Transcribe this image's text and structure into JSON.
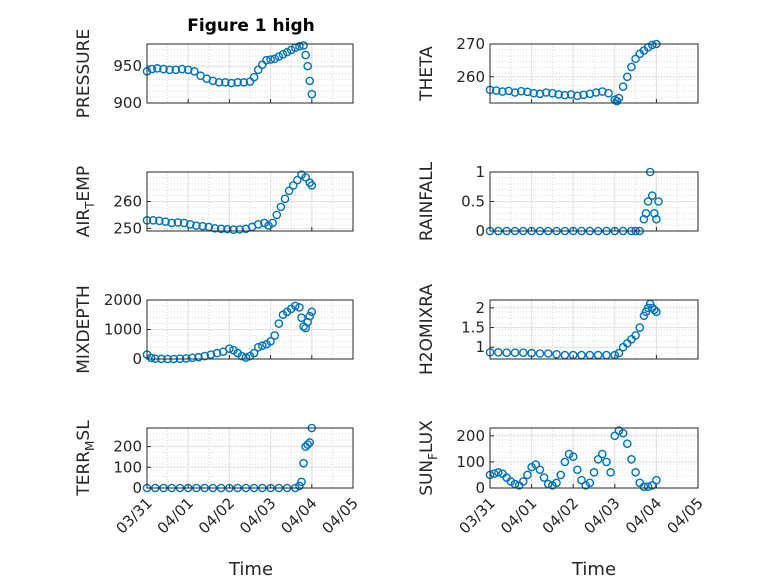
{
  "title": "Figure 1 high",
  "x_axis_label": "Time",
  "marker_color": "#0072bd",
  "chart_data": [
    {
      "type": "scatter",
      "ylabel": "PRESSURE",
      "ylim": [
        900,
        980
      ],
      "yticks": [
        900,
        950
      ],
      "xlim": [
        0,
        5
      ],
      "xticks": [],
      "grid": true,
      "x": [
        0,
        0.12,
        0.25,
        0.4,
        0.55,
        0.7,
        0.85,
        1.0,
        1.15,
        1.3,
        1.45,
        1.6,
        1.75,
        1.9,
        2.05,
        2.2,
        2.35,
        2.5,
        2.6,
        2.7,
        2.8,
        2.9,
        3.0,
        3.1,
        3.2,
        3.3,
        3.4,
        3.5,
        3.6,
        3.7,
        3.8,
        3.85,
        3.9,
        3.95,
        4.0
      ],
      "y": [
        943,
        946,
        947,
        946,
        945,
        945,
        946,
        945,
        943,
        937,
        933,
        930,
        928,
        928,
        927,
        928,
        928,
        929,
        935,
        945,
        952,
        958,
        959,
        960,
        963,
        966,
        969,
        972,
        975,
        977,
        978,
        965,
        950,
        930,
        912
      ]
    },
    {
      "type": "scatter",
      "ylabel": "THETA",
      "ylim": [
        252,
        270
      ],
      "yticks": [
        260,
        270
      ],
      "xlim": [
        0,
        5
      ],
      "xticks": [],
      "grid": true,
      "x": [
        0,
        0.15,
        0.3,
        0.45,
        0.6,
        0.75,
        0.9,
        1.05,
        1.2,
        1.35,
        1.5,
        1.65,
        1.8,
        1.95,
        2.1,
        2.25,
        2.4,
        2.55,
        2.7,
        2.85,
        3.0,
        3.05,
        3.1,
        3.2,
        3.3,
        3.4,
        3.5,
        3.6,
        3.7,
        3.8,
        3.9,
        4.0
      ],
      "y": [
        256,
        255.8,
        255.5,
        255.7,
        255.2,
        255.6,
        255.4,
        255,
        254.8,
        255.2,
        255,
        254.6,
        254.4,
        254.6,
        254.2,
        254.5,
        254.8,
        255.2,
        255.5,
        255,
        253,
        252.6,
        253.5,
        257,
        260,
        263,
        265.5,
        267,
        268,
        269,
        269.7,
        270
      ]
    },
    {
      "type": "scatter",
      "ylabel": "AIR_TEMP",
      "ylim": [
        249,
        271
      ],
      "yticks": [
        250,
        260
      ],
      "xlim": [
        0,
        5
      ],
      "xticks": [],
      "grid": true,
      "x": [
        0,
        0.15,
        0.3,
        0.45,
        0.6,
        0.75,
        0.9,
        1.05,
        1.2,
        1.35,
        1.5,
        1.65,
        1.8,
        1.95,
        2.1,
        2.25,
        2.4,
        2.55,
        2.7,
        2.85,
        2.95,
        3.05,
        3.15,
        3.25,
        3.35,
        3.45,
        3.55,
        3.65,
        3.75,
        3.85,
        3.95,
        4.0
      ],
      "y": [
        253,
        253,
        252.8,
        252.5,
        252,
        252.2,
        252,
        251.5,
        251,
        250.8,
        250.5,
        250,
        249.8,
        249.7,
        249.5,
        249.6,
        249.8,
        250.5,
        251.5,
        252,
        251,
        252,
        255,
        258,
        261,
        264,
        266,
        268,
        270,
        269,
        267,
        266
      ]
    },
    {
      "type": "scatter",
      "ylabel": "RAINFALL",
      "ylim": [
        0,
        1
      ],
      "yticks": [
        0,
        0.5,
        1
      ],
      "xlim": [
        0,
        5
      ],
      "xticks": [],
      "grid": true,
      "x": [
        0,
        0.2,
        0.4,
        0.6,
        0.8,
        1.0,
        1.2,
        1.4,
        1.6,
        1.8,
        2.0,
        2.2,
        2.4,
        2.6,
        2.8,
        3.0,
        3.2,
        3.4,
        3.5,
        3.6,
        3.7,
        3.75,
        3.8,
        3.85,
        3.9,
        3.95,
        4.0,
        4.05
      ],
      "y": [
        0,
        0,
        0,
        0,
        0,
        0,
        0,
        0,
        0,
        0,
        0,
        0,
        0,
        0,
        0,
        0,
        0,
        0,
        0,
        0,
        0.2,
        0.3,
        0.5,
        1.0,
        0.6,
        0.3,
        0.2,
        0.5
      ]
    },
    {
      "type": "scatter",
      "ylabel": "MIXDEPTH",
      "ylim": [
        0,
        2000
      ],
      "yticks": [
        0,
        1000,
        2000
      ],
      "xlim": [
        0,
        5
      ],
      "xticks": [],
      "grid": true,
      "x": [
        0,
        0.1,
        0.2,
        0.35,
        0.5,
        0.65,
        0.8,
        0.95,
        1.1,
        1.25,
        1.4,
        1.55,
        1.7,
        1.85,
        2.0,
        2.1,
        2.2,
        2.3,
        2.4,
        2.5,
        2.6,
        2.7,
        2.8,
        2.9,
        3.0,
        3.1,
        3.2,
        3.3,
        3.4,
        3.5,
        3.6,
        3.7,
        3.75,
        3.8,
        3.85,
        3.9,
        3.95,
        4.0
      ],
      "y": [
        150,
        40,
        10,
        5,
        0,
        0,
        10,
        20,
        40,
        60,
        100,
        150,
        200,
        250,
        350,
        300,
        200,
        100,
        50,
        100,
        200,
        400,
        450,
        500,
        600,
        800,
        1200,
        1500,
        1600,
        1700,
        1800,
        1750,
        1400,
        1100,
        1050,
        1250,
        1450,
        1600
      ]
    },
    {
      "type": "scatter",
      "ylabel": "H2OMIXRA",
      "ylim": [
        0.7,
        2.2
      ],
      "yticks": [
        1,
        1.5,
        2
      ],
      "xlim": [
        0,
        5
      ],
      "xticks": [],
      "grid": true,
      "x": [
        0,
        0.2,
        0.4,
        0.6,
        0.8,
        1.0,
        1.2,
        1.4,
        1.6,
        1.8,
        2.0,
        2.2,
        2.4,
        2.6,
        2.8,
        3.0,
        3.1,
        3.2,
        3.3,
        3.4,
        3.5,
        3.6,
        3.7,
        3.75,
        3.8,
        3.85,
        3.9,
        3.95,
        4.0
      ],
      "y": [
        0.87,
        0.87,
        0.86,
        0.86,
        0.86,
        0.85,
        0.84,
        0.84,
        0.82,
        0.8,
        0.8,
        0.8,
        0.8,
        0.8,
        0.8,
        0.8,
        0.85,
        1.0,
        1.1,
        1.2,
        1.3,
        1.5,
        1.8,
        1.9,
        2.0,
        2.1,
        2.0,
        1.95,
        1.9
      ]
    },
    {
      "type": "scatter",
      "ylabel": "TERR_MSL",
      "ylim": [
        0,
        290
      ],
      "yticks": [
        0,
        100,
        200
      ],
      "xlim": [
        0,
        5
      ],
      "xticks": [
        "03/31",
        "04/01",
        "04/02",
        "04/03",
        "04/04",
        "04/05"
      ],
      "grid": true,
      "x": [
        0,
        0.2,
        0.4,
        0.6,
        0.8,
        1.0,
        1.2,
        1.4,
        1.6,
        1.8,
        2.0,
        2.2,
        2.4,
        2.6,
        2.8,
        3.0,
        3.2,
        3.4,
        3.6,
        3.7,
        3.75,
        3.8,
        3.85,
        3.9,
        3.95,
        4.0
      ],
      "y": [
        0,
        0,
        0,
        0,
        0,
        0,
        0,
        0,
        0,
        0,
        0,
        0,
        0,
        0,
        0,
        0,
        0,
        0,
        0,
        10,
        30,
        120,
        200,
        210,
        220,
        290
      ]
    },
    {
      "type": "scatter",
      "ylabel": "SUN_FLUX",
      "ylim": [
        0,
        230
      ],
      "yticks": [
        0,
        100,
        200
      ],
      "xlim": [
        0,
        5
      ],
      "xticks": [
        "03/31",
        "04/01",
        "04/02",
        "04/03",
        "04/04",
        "04/05"
      ],
      "grid": true,
      "x": [
        0,
        0.1,
        0.2,
        0.3,
        0.4,
        0.5,
        0.6,
        0.7,
        0.8,
        0.9,
        1.0,
        1.1,
        1.2,
        1.3,
        1.4,
        1.5,
        1.6,
        1.7,
        1.8,
        1.9,
        2.0,
        2.1,
        2.2,
        2.3,
        2.4,
        2.5,
        2.6,
        2.7,
        2.8,
        2.9,
        3.0,
        3.1,
        3.2,
        3.3,
        3.4,
        3.5,
        3.6,
        3.7,
        3.8,
        3.9,
        4.0
      ],
      "y": [
        50,
        55,
        60,
        55,
        40,
        25,
        15,
        10,
        25,
        50,
        80,
        90,
        70,
        40,
        15,
        10,
        20,
        50,
        100,
        130,
        120,
        70,
        30,
        10,
        20,
        60,
        110,
        130,
        100,
        60,
        200,
        220,
        210,
        170,
        110,
        60,
        20,
        5,
        5,
        10,
        30
      ]
    }
  ]
}
